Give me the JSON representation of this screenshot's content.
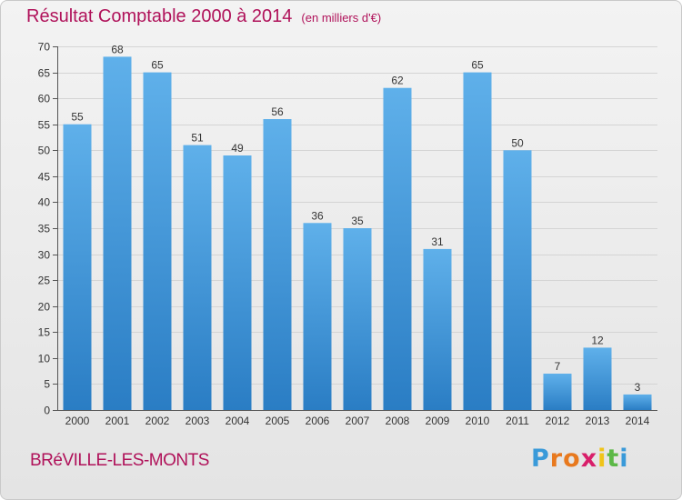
{
  "header": {
    "title": "Résultat Comptable 2000 à 2014",
    "unit": "(en milliers d'€)"
  },
  "footer": {
    "municipality": "BRéVILLE-LES-MONTS",
    "logo_letters": [
      "P",
      "r",
      "o",
      "x",
      "i",
      "t",
      "i"
    ],
    "logo_colors": [
      "#3a9ad9",
      "#e8791e",
      "#e8791e",
      "#d81f6a",
      "#f0c419",
      "#5cb847",
      "#3a9ad9"
    ]
  },
  "colors": {
    "bar_light": "#5fb0ea",
    "bar_dark": "#2a7dc4",
    "title": "#b0125a",
    "grid": "#d4d4d4"
  },
  "chart_data": {
    "type": "bar",
    "categories": [
      "2000",
      "2001",
      "2002",
      "2003",
      "2004",
      "2005",
      "2006",
      "2007",
      "2008",
      "2009",
      "2010",
      "2011",
      "2012",
      "2013",
      "2014"
    ],
    "values": [
      55,
      68,
      65,
      51,
      49,
      56,
      36,
      35,
      62,
      31,
      65,
      50,
      7,
      12,
      3
    ],
    "ylim": [
      0,
      70
    ],
    "yticks": [
      0,
      5,
      10,
      15,
      20,
      25,
      30,
      35,
      40,
      45,
      50,
      55,
      60,
      65,
      70
    ],
    "data_labels": true,
    "grid": true
  }
}
